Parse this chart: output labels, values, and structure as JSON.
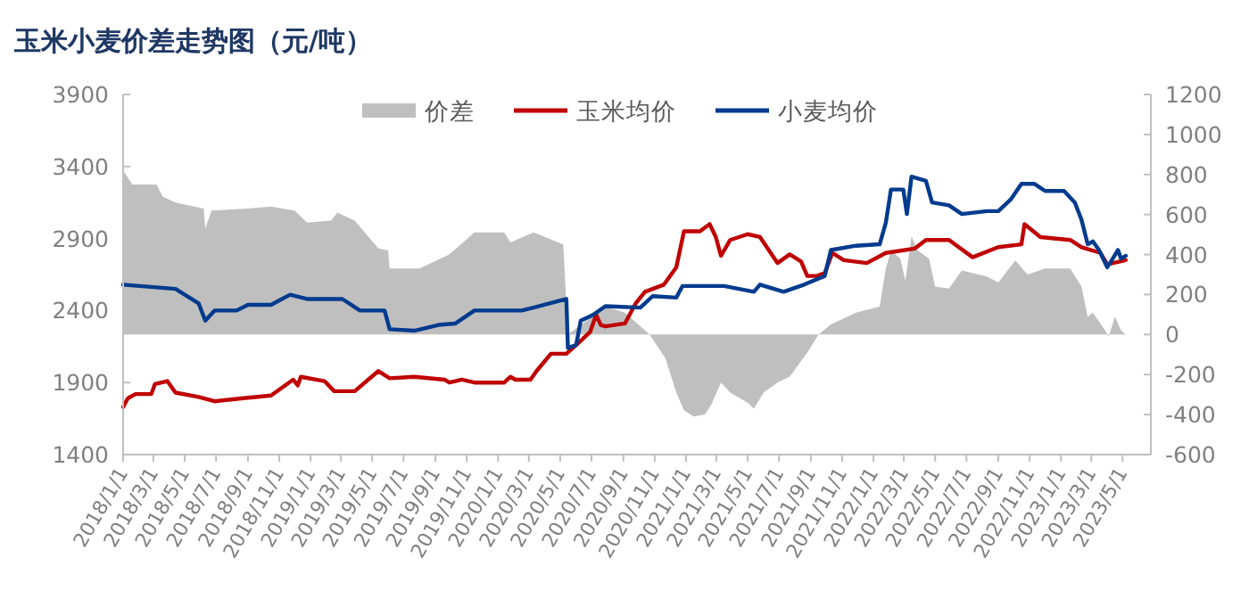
{
  "chart_data": {
    "type": "line",
    "title": "玉米小麦价差走势图（元/吨）",
    "legend": "top",
    "xlim": [
      "2018-01-01",
      "2023-06-25"
    ],
    "xticks": [
      {
        "value": "2018-01-01",
        "label": "2018/1/1"
      },
      {
        "value": "2018-03-01",
        "label": "2018/3/1"
      },
      {
        "value": "2018-05-01",
        "label": "2018/5/1"
      },
      {
        "value": "2018-07-01",
        "label": "2018/7/1"
      },
      {
        "value": "2018-09-01",
        "label": "2018/9/1"
      },
      {
        "value": "2018-11-01",
        "label": "2018/11/1"
      },
      {
        "value": "2019-01-01",
        "label": "2019/1/1"
      },
      {
        "value": "2019-03-01",
        "label": "2019/3/1"
      },
      {
        "value": "2019-05-01",
        "label": "2019/5/1"
      },
      {
        "value": "2019-07-01",
        "label": "2019/7/1"
      },
      {
        "value": "2019-09-01",
        "label": "2019/9/1"
      },
      {
        "value": "2019-11-01",
        "label": "2019/11/1"
      },
      {
        "value": "2020-01-01",
        "label": "2020/1/1"
      },
      {
        "value": "2020-03-01",
        "label": "2020/3/1"
      },
      {
        "value": "2020-05-01",
        "label": "2020/5/1"
      },
      {
        "value": "2020-07-01",
        "label": "2020/7/1"
      },
      {
        "value": "2020-09-01",
        "label": "2020/9/1"
      },
      {
        "value": "2020-11-01",
        "label": "2020/11/1"
      },
      {
        "value": "2021-01-01",
        "label": "2021/1/1"
      },
      {
        "value": "2021-03-01",
        "label": "2021/3/1"
      },
      {
        "value": "2021-05-01",
        "label": "2021/5/1"
      },
      {
        "value": "2021-07-01",
        "label": "2021/7/1"
      },
      {
        "value": "2021-09-01",
        "label": "2021/9/1"
      },
      {
        "value": "2021-11-01",
        "label": "2021/11/1"
      },
      {
        "value": "2022-01-01",
        "label": "2022/1/1"
      },
      {
        "value": "2022-03-01",
        "label": "2022/3/1"
      },
      {
        "value": "2022-05-01",
        "label": "2022/5/1"
      },
      {
        "value": "2022-07-01",
        "label": "2022/7/1"
      },
      {
        "value": "2022-09-01",
        "label": "2022/9/1"
      },
      {
        "value": "2022-11-01",
        "label": "2022/11/1"
      },
      {
        "value": "2023-01-01",
        "label": "2023/1/1"
      },
      {
        "value": "2023-03-01",
        "label": "2023/3/1"
      },
      {
        "value": "2023-05-01",
        "label": "2023/5/1"
      }
    ],
    "ylim": [
      1400,
      3900
    ],
    "yticks": [
      1400,
      1900,
      2400,
      2900,
      3400,
      3900
    ],
    "y2lim": [
      -600,
      1200
    ],
    "y2ticks": [
      -600,
      -400,
      -200,
      0,
      200,
      400,
      600,
      800,
      1000,
      1200
    ],
    "series": [
      {
        "name": "价差",
        "type": "area",
        "axis": "y2",
        "color": "#bfbfbf",
        "x": [
          "2018-01-01",
          "2018-01-19",
          "2018-03-07",
          "2018-03-19",
          "2018-04-13",
          "2018-06-07",
          "2018-06-10",
          "2018-06-22",
          "2018-09-01",
          "2018-10-16",
          "2018-12-01",
          "2018-12-25",
          "2019-02-10",
          "2019-02-22",
          "2019-03-28",
          "2019-05-13",
          "2019-06-01",
          "2019-06-04",
          "2019-08-01",
          "2019-09-28",
          "2019-11-16",
          "2020-01-13",
          "2020-01-25",
          "2020-03-10",
          "2020-05-07",
          "2020-05-16",
          "2020-07-28",
          "2020-09-04",
          "2020-10-22",
          "2020-11-22",
          "2020-12-13",
          "2020-12-28",
          "2021-01-16",
          "2021-02-07",
          "2021-02-19",
          "2021-03-10",
          "2021-03-28",
          "2021-05-01",
          "2021-05-13",
          "2021-06-01",
          "2021-06-28",
          "2021-07-22",
          "2021-08-25",
          "2021-09-16",
          "2021-10-10",
          "2021-11-28",
          "2022-01-13",
          "2022-01-25",
          "2022-02-04",
          "2022-02-22",
          "2022-03-04",
          "2022-03-16",
          "2022-03-28",
          "2022-04-19",
          "2022-05-01",
          "2022-05-28",
          "2022-06-22",
          "2022-08-10",
          "2022-09-01",
          "2022-10-04",
          "2022-10-28",
          "2022-12-01",
          "2023-01-19",
          "2023-02-10",
          "2023-02-22",
          "2023-03-04",
          "2023-03-28",
          "2023-04-04",
          "2023-04-16",
          "2023-04-28",
          "2023-05-07"
        ],
        "values": [
          820,
          750,
          750,
          690,
          660,
          630,
          530,
          620,
          630,
          640,
          620,
          560,
          570,
          610,
          570,
          430,
          420,
          330,
          330,
          400,
          510,
          510,
          460,
          510,
          450,
          0,
          140,
          110,
          0,
          -120,
          -290,
          -380,
          -410,
          -400,
          -350,
          -240,
          -290,
          -340,
          -370,
          -290,
          -240,
          -210,
          -90,
          0,
          50,
          110,
          140,
          330,
          420,
          380,
          270,
          490,
          420,
          380,
          240,
          230,
          320,
          290,
          260,
          370,
          300,
          330,
          330,
          240,
          90,
          110,
          20,
          -10,
          90,
          20,
          0
        ]
      },
      {
        "name": "玉米均价",
        "color": "#c00000",
        "x": [
          "2018-01-01",
          "2018-01-10",
          "2018-01-25",
          "2018-02-25",
          "2018-03-04",
          "2018-03-28",
          "2018-04-13",
          "2018-05-28",
          "2018-06-28",
          "2018-08-19",
          "2018-10-16",
          "2018-11-28",
          "2018-12-07",
          "2018-12-13",
          "2019-01-28",
          "2019-02-16",
          "2019-03-28",
          "2019-05-13",
          "2019-06-04",
          "2019-07-22",
          "2019-09-19",
          "2019-09-28",
          "2019-10-22",
          "2019-11-16",
          "2020-01-13",
          "2020-01-25",
          "2020-02-04",
          "2020-03-04",
          "2020-03-16",
          "2020-04-13",
          "2020-05-13",
          "2020-06-01",
          "2020-06-28",
          "2020-07-10",
          "2020-07-19",
          "2020-07-28",
          "2020-09-04",
          "2020-09-25",
          "2020-10-13",
          "2020-11-19",
          "2020-12-13",
          "2020-12-28",
          "2021-01-28",
          "2021-02-16",
          "2021-02-28",
          "2021-03-10",
          "2021-03-28",
          "2021-05-01",
          "2021-05-25",
          "2021-06-28",
          "2021-07-22",
          "2021-08-13",
          "2021-08-25",
          "2021-09-13",
          "2021-09-28",
          "2021-10-13",
          "2021-11-04",
          "2021-12-19",
          "2022-01-25",
          "2022-03-22",
          "2022-04-13",
          "2022-05-28",
          "2022-07-13",
          "2022-09-01",
          "2022-10-16",
          "2022-10-22",
          "2022-11-22",
          "2023-01-19",
          "2023-02-10",
          "2023-03-19",
          "2023-04-01",
          "2023-05-07"
        ],
        "values": [
          1730,
          1790,
          1820,
          1820,
          1890,
          1910,
          1830,
          1800,
          1770,
          1790,
          1810,
          1920,
          1880,
          1940,
          1910,
          1840,
          1840,
          1980,
          1930,
          1940,
          1920,
          1900,
          1920,
          1900,
          1900,
          1940,
          1920,
          1920,
          1980,
          2100,
          2100,
          2160,
          2250,
          2370,
          2300,
          2290,
          2310,
          2450,
          2530,
          2580,
          2700,
          2950,
          2950,
          3000,
          2910,
          2780,
          2890,
          2930,
          2910,
          2730,
          2790,
          2740,
          2640,
          2640,
          2660,
          2800,
          2750,
          2730,
          2800,
          2830,
          2890,
          2890,
          2770,
          2840,
          2860,
          3000,
          2910,
          2890,
          2840,
          2800,
          2720,
          2750
        ]
      },
      {
        "name": "小麦均价",
        "color": "#003b8e",
        "x": [
          "2018-01-01",
          "2018-04-13",
          "2018-05-28",
          "2018-06-10",
          "2018-06-28",
          "2018-08-10",
          "2018-09-01",
          "2018-10-16",
          "2018-11-22",
          "2018-12-25",
          "2019-03-04",
          "2019-04-07",
          "2019-05-25",
          "2019-06-04",
          "2019-07-22",
          "2019-09-07",
          "2019-10-10",
          "2019-11-16",
          "2020-02-16",
          "2020-03-10",
          "2020-05-13",
          "2020-05-16",
          "2020-06-01",
          "2020-06-10",
          "2020-07-04",
          "2020-07-28",
          "2020-10-04",
          "2020-10-28",
          "2020-12-13",
          "2020-12-25",
          "2021-03-16",
          "2021-05-13",
          "2021-05-25",
          "2021-07-10",
          "2021-08-19",
          "2021-09-28",
          "2021-10-10",
          "2021-11-28",
          "2022-01-13",
          "2022-01-25",
          "2022-02-04",
          "2022-02-28",
          "2022-03-07",
          "2022-03-16",
          "2022-04-13",
          "2022-04-25",
          "2022-05-28",
          "2022-06-22",
          "2022-08-10",
          "2022-09-01",
          "2022-09-25",
          "2022-10-16",
          "2022-11-10",
          "2022-12-01",
          "2023-01-07",
          "2023-01-28",
          "2023-02-10",
          "2023-02-22",
          "2023-03-04",
          "2023-03-16",
          "2023-04-01",
          "2023-04-10",
          "2023-04-22",
          "2023-04-28",
          "2023-05-07"
        ],
        "values": [
          2580,
          2550,
          2450,
          2330,
          2400,
          2400,
          2440,
          2440,
          2510,
          2480,
          2480,
          2400,
          2400,
          2270,
          2260,
          2300,
          2310,
          2400,
          2400,
          2420,
          2480,
          2140,
          2160,
          2330,
          2370,
          2430,
          2420,
          2500,
          2490,
          2570,
          2570,
          2530,
          2580,
          2530,
          2580,
          2640,
          2820,
          2850,
          2860,
          3010,
          3240,
          3240,
          3070,
          3330,
          3300,
          3150,
          3130,
          3070,
          3090,
          3090,
          3170,
          3280,
          3280,
          3230,
          3230,
          3150,
          3030,
          2860,
          2880,
          2820,
          2700,
          2750,
          2820,
          2760,
          2780
        ]
      }
    ]
  }
}
